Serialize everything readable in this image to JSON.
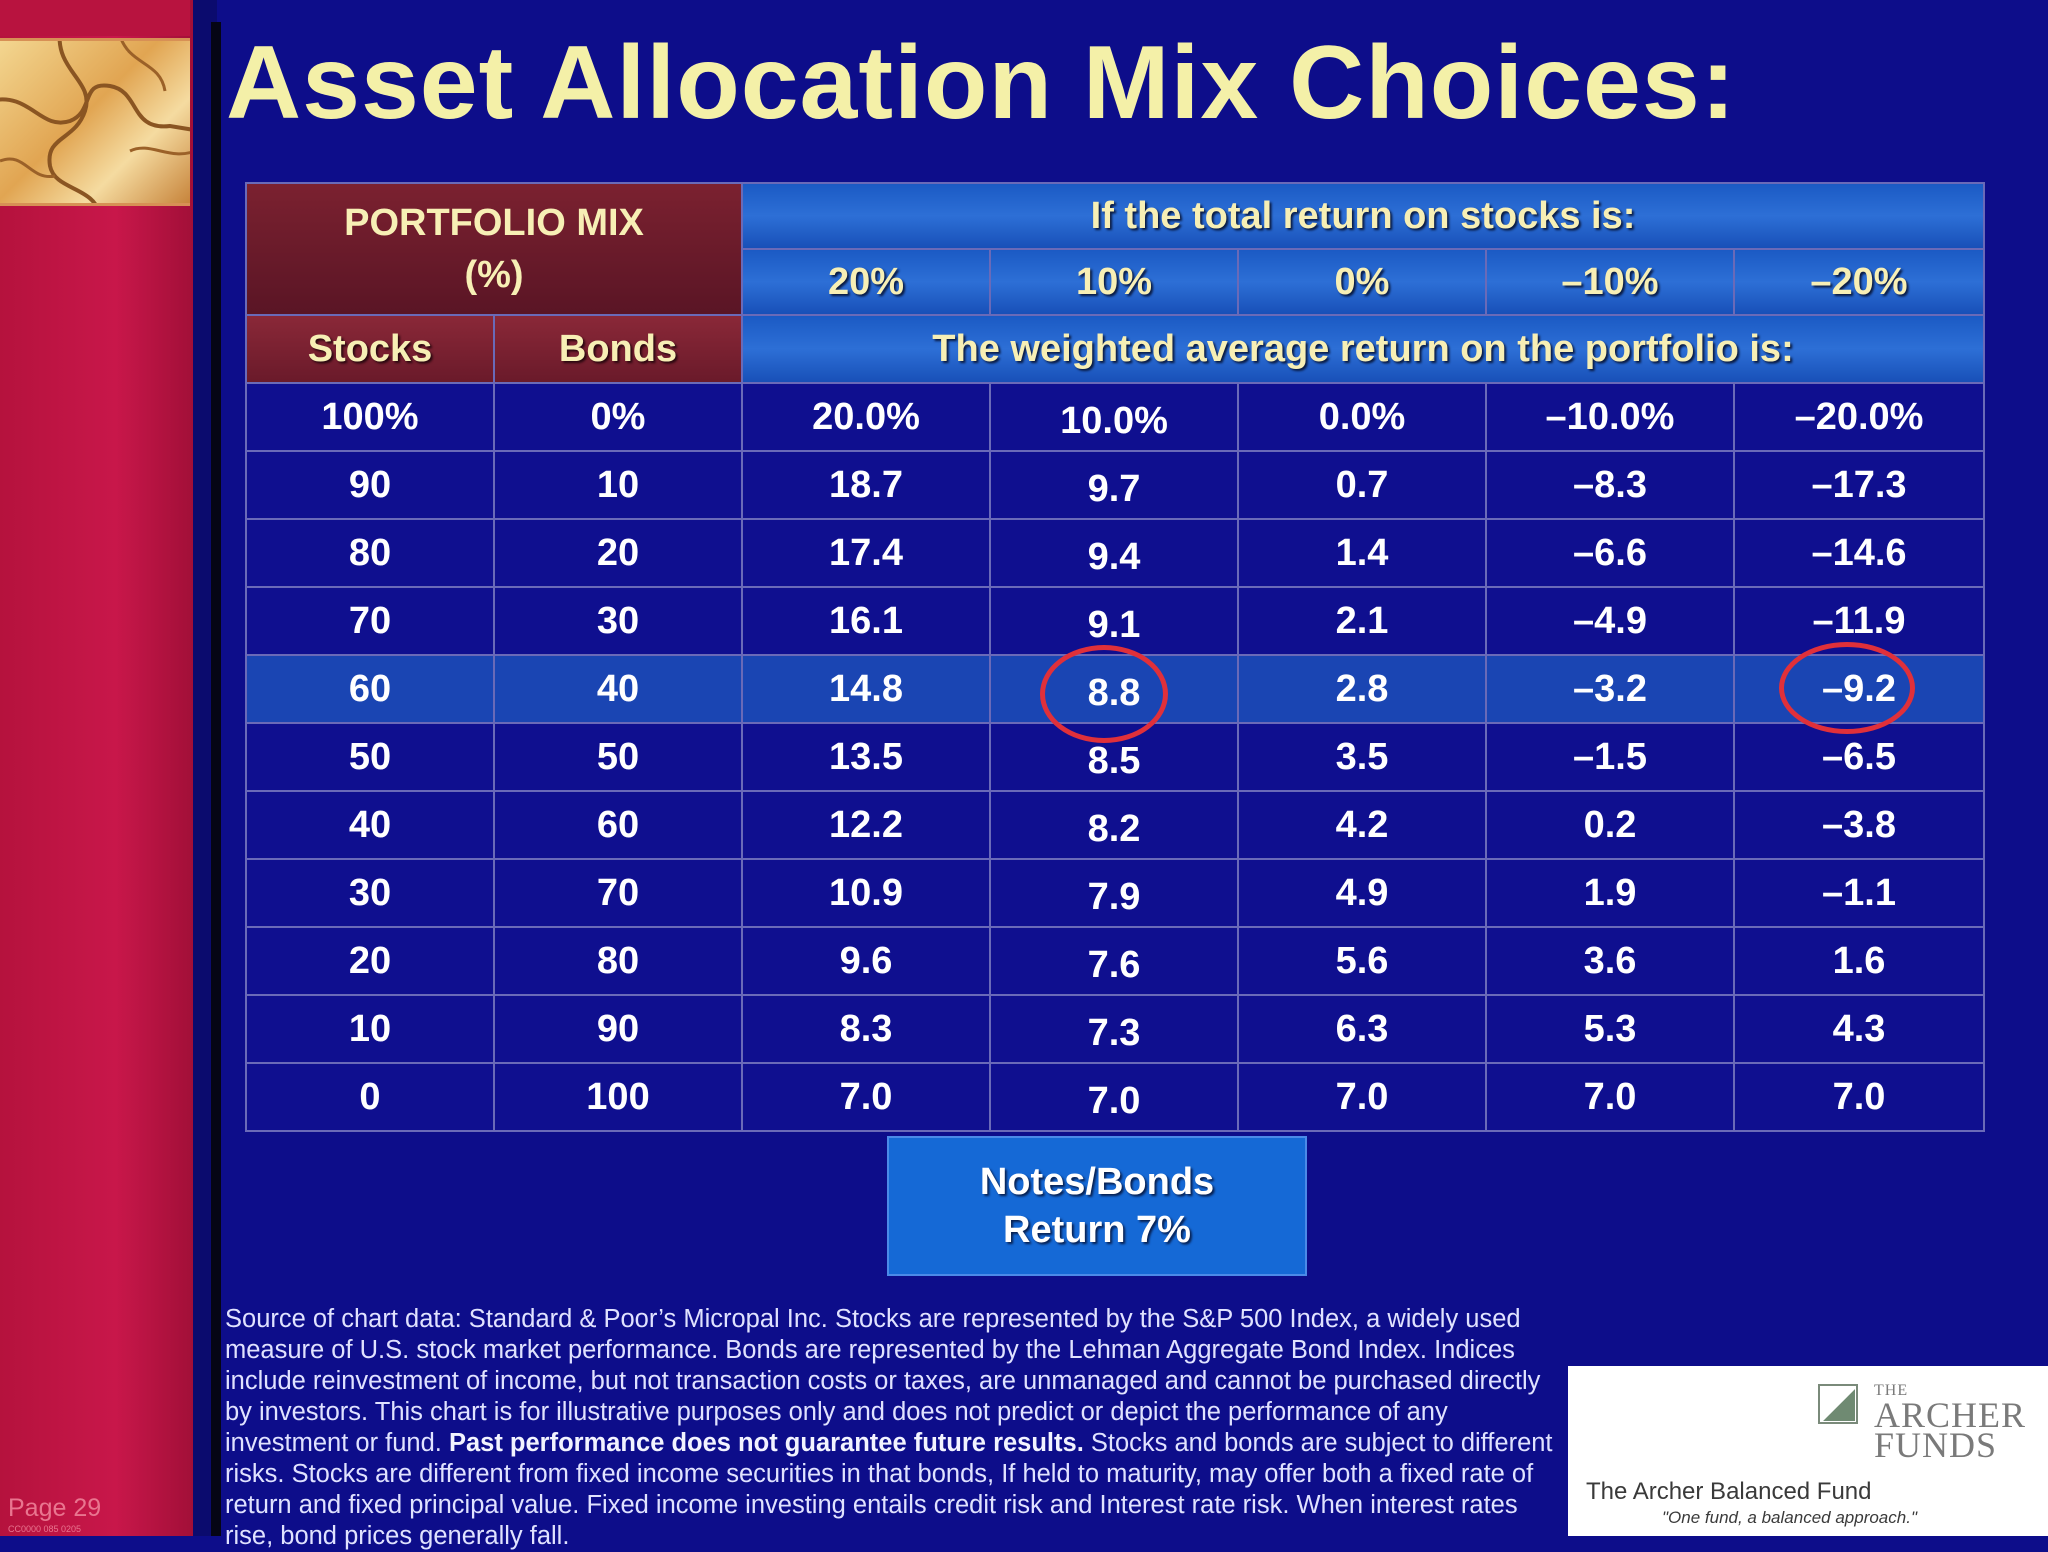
{
  "page": {
    "title": "Asset Allocation Mix Choices:",
    "page_number": "Page 29",
    "doc_code": "CC0000 085 0205"
  },
  "table": {
    "portfolio_mix_header_line1": "PORTFOLIO MIX",
    "portfolio_mix_header_line2": "(%)",
    "stocks_return_header": "If the total return on stocks is:",
    "scenarios": [
      "20%",
      "10%",
      "0%",
      "–10%",
      "–20%"
    ],
    "stocks_label": "Stocks",
    "bonds_label": "Bonds",
    "weighted_header": "The weighted average return on the portfolio is:",
    "rows": [
      {
        "stocks": "100%",
        "bonds": "0%",
        "r20": "20.0%",
        "r10": "10.0%",
        "r0": "0.0%",
        "rm10": "–10.0%",
        "rm20": "–20.0%"
      },
      {
        "stocks": "90",
        "bonds": "10",
        "r20": "18.7",
        "r10": "9.7",
        "r0": "0.7",
        "rm10": "–8.3",
        "rm20": "–17.3"
      },
      {
        "stocks": "80",
        "bonds": "20",
        "r20": "17.4",
        "r10": "9.4",
        "r0": "1.4",
        "rm10": "–6.6",
        "rm20": "–14.6"
      },
      {
        "stocks": "70",
        "bonds": "30",
        "r20": "16.1",
        "r10": "9.1",
        "r0": "2.1",
        "rm10": "–4.9",
        "rm20": "–11.9"
      },
      {
        "stocks": "60",
        "bonds": "40",
        "r20": "14.8",
        "r10": "8.8",
        "r0": "2.8",
        "rm10": "–3.2",
        "rm20": "–9.2"
      },
      {
        "stocks": "50",
        "bonds": "50",
        "r20": "13.5",
        "r10": "8.5",
        "r0": "3.5",
        "rm10": "–1.5",
        "rm20": "–6.5"
      },
      {
        "stocks": "40",
        "bonds": "60",
        "r20": "12.2",
        "r10": "8.2",
        "r0": "4.2",
        "rm10": "0.2",
        "rm20": "–3.8"
      },
      {
        "stocks": "30",
        "bonds": "70",
        "r20": "10.9",
        "r10": "7.9",
        "r0": "4.9",
        "rm10": "1.9",
        "rm20": "–1.1"
      },
      {
        "stocks": "20",
        "bonds": "80",
        "r20": "9.6",
        "r10": "7.6",
        "r0": "5.6",
        "rm10": "3.6",
        "rm20": "1.6"
      },
      {
        "stocks": "10",
        "bonds": "90",
        "r20": "8.3",
        "r10": "7.3",
        "r0": "6.3",
        "rm10": "5.3",
        "rm20": "4.3"
      },
      {
        "stocks": "0",
        "bonds": "100",
        "r20": "7.0",
        "r10": "7.0",
        "r0": "7.0",
        "rm10": "7.0",
        "rm20": "7.0"
      }
    ]
  },
  "notes_box": {
    "line1": "Notes/Bonds",
    "line2": "Return 7%"
  },
  "disclaimer": {
    "part1": "Source of chart data: Standard & Poor’s Micropal Inc. Stocks are represented by the S&P 500 Index, a widely used measure of U.S. stock market performance. Bonds are represented by the Lehman Aggregate Bond Index. Indices include reinvestment of income, but not transaction costs or taxes, are unmanaged and cannot be purchased directly by investors. This chart is for illustrative purposes only and does not predict or depict the performance of any investment or fund. ",
    "bold": "Past performance does not guarantee future results.",
    "part2": " Stocks and bonds are subject to different risks. Stocks are different from fixed income securities in that bonds, If held to maturity, may offer both a fixed rate of return and fixed principal value. Fixed income investing entails credit risk and Interest rate risk. When interest rates rise, bond prices generally fall."
  },
  "logo": {
    "the": "THE",
    "archer": "ARCHER",
    "funds": "FUNDS",
    "fund_name": "The Archer Balanced Fund",
    "tagline": "\"One fund, a balanced approach.\""
  },
  "colors": {
    "background": "#0d0d8a",
    "title": "#f4f0a8",
    "sidebar": "#c8174a",
    "highlight_row": "#1a45b3",
    "circle": "#e0303a"
  }
}
